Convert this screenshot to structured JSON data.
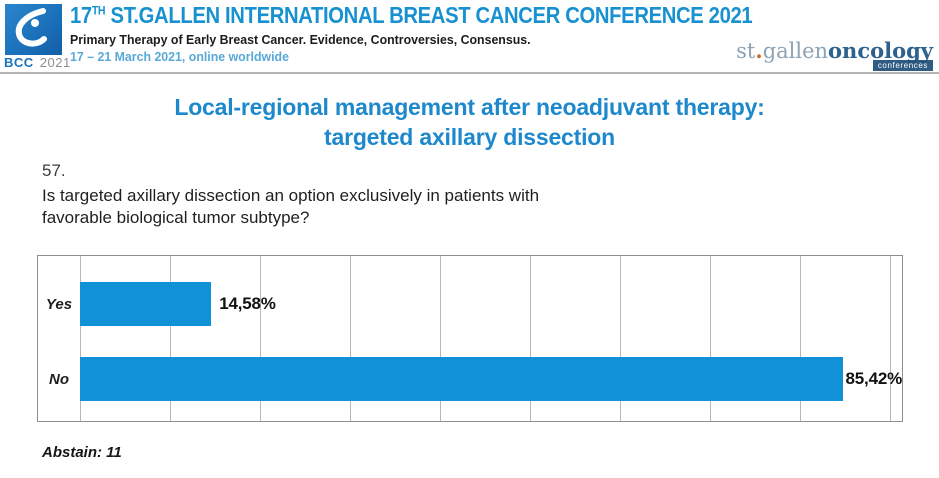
{
  "header": {
    "logo": {
      "acronym": "BCC",
      "year": "2021"
    },
    "conference_title": {
      "number": "17",
      "ordinal": "TH",
      "rest": " ST.GALLEN INTERNATIONAL BREAST CANCER CONFERENCE 2021"
    },
    "subtitle": "Primary Therapy of Early Breast Cancer. Evidence, Controversies, Consensus.",
    "dates": "17 – 21 March 2021, online worldwide",
    "org": {
      "prefix": "st",
      "dot": ".",
      "middle": "gallen",
      "suffix": "oncology",
      "badge": "conferences"
    }
  },
  "slide": {
    "title_line1": "Local-regional management after neoadjuvant therapy:",
    "title_line2": "targeted axillary dissection",
    "question": {
      "number": "57.",
      "line1": "Is targeted axillary dissection an option exclusively in patients with",
      "line2": "favorable biological tumor subtype?"
    },
    "footnote": "Abstain: 11"
  },
  "chart_data": {
    "type": "bar",
    "orientation": "horizontal",
    "title": "",
    "categories": [
      "Yes",
      "No"
    ],
    "values": [
      14.58,
      85.42
    ],
    "value_labels": [
      "14,58%",
      "85,42%"
    ],
    "xlim": [
      0,
      100
    ],
    "gridline_step": 10,
    "grid": true,
    "bar_color": "#1091d8",
    "annotation": "Abstain: 11"
  },
  "colors": {
    "header_blue": "#1791d0",
    "title_blue": "#1e88cc",
    "bar_blue": "#1091d8",
    "dates_blue": "#58a9d7",
    "logo_blue": "#1a73be",
    "org_light_blue": "#8ba3b5",
    "org_dark_blue": "#2d628f",
    "org_badge_blue": "#1f4e79",
    "org_dot_orange": "#d4691e"
  }
}
